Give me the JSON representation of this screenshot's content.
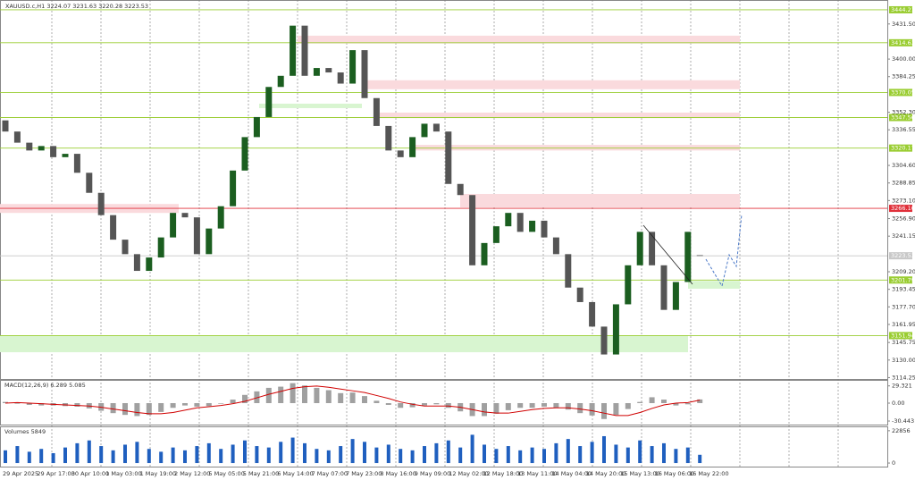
{
  "chart_data": {
    "type": "candlestick",
    "title": "XAUUSD.c,H1  3224.07 3231.63 3220.28 3223.53",
    "x_labels": [
      "29 Apr 2025",
      "29 Apr 17:00",
      "30 Apr 10:00",
      "1 May 03:00",
      "1 May 19:00",
      "2 May 12:00",
      "5 May 05:00",
      "5 May 21:00",
      "6 May 14:00",
      "7 May 07:00",
      "7 May 23:00",
      "8 May 16:00",
      "9 May 09:00",
      "12 May 02:00",
      "12 May 18:00",
      "13 May 11:00",
      "14 May 04:00",
      "14 May 20:00",
      "15 May 13:00",
      "16 May 06:00",
      "16 May 22:00"
    ],
    "open": [
      3345,
      3335,
      3325,
      3318,
      3322,
      3312,
      3315,
      3298,
      3280,
      3260,
      3238,
      3225,
      3210,
      3222,
      3240,
      3262,
      3258,
      3225,
      3248,
      3268,
      3300,
      3330,
      3348,
      3375,
      3385,
      3430,
      3385,
      3392,
      3388,
      3378,
      3408,
      3365,
      3340,
      3318,
      3312,
      3330,
      3342,
      3335,
      3288,
      3278,
      3215,
      3235,
      3250,
      3262,
      3245,
      3255,
      3240,
      3225,
      3195,
      3182,
      3160,
      3135,
      3180,
      3215,
      3245,
      3215,
      3175,
      3200,
      3224.07
    ],
    "close": [
      3335,
      3325,
      3318,
      3322,
      3312,
      3315,
      3298,
      3280,
      3260,
      3238,
      3225,
      3210,
      3222,
      3240,
      3262,
      3258,
      3225,
      3248,
      3268,
      3300,
      3330,
      3348,
      3375,
      3385,
      3430,
      3385,
      3392,
      3388,
      3378,
      3408,
      3365,
      3340,
      3318,
      3312,
      3330,
      3342,
      3335,
      3288,
      3278,
      3215,
      3235,
      3250,
      3262,
      3245,
      3255,
      3240,
      3225,
      3195,
      3182,
      3160,
      3135,
      3180,
      3215,
      3245,
      3215,
      3175,
      3200,
      3245,
      3223.53
    ],
    "up_color": "#1b5e20",
    "down_color": "#555555",
    "ylim": [
      3113,
      3453
    ],
    "yticks": [
      {
        "value": 3431.5,
        "label": "3431.50"
      },
      {
        "value": 3400,
        "label": "3400.00"
      },
      {
        "value": 3384.25,
        "label": "3384.25"
      },
      {
        "value": 3352.3,
        "label": "3352.30"
      },
      {
        "value": 3336.55,
        "label": "3336.55"
      },
      {
        "value": 3304.6,
        "label": "3304.60"
      },
      {
        "value": 3288.85,
        "label": "3288.85"
      },
      {
        "value": 3273.1,
        "label": "3273.10"
      },
      {
        "value": 3256.9,
        "label": "3256.90"
      },
      {
        "value": 3241.15,
        "label": "3241.15"
      },
      {
        "value": 3209.2,
        "label": "3209.20"
      },
      {
        "value": 3193.45,
        "label": "3193.45"
      },
      {
        "value": 3177.7,
        "label": "3177.70"
      },
      {
        "value": 3161.95,
        "label": "3161.95"
      },
      {
        "value": 3145.75,
        "label": "3145.75"
      },
      {
        "value": 3130,
        "label": "3130.00"
      },
      {
        "value": 3114.25,
        "label": "3114.25"
      }
    ],
    "levels": [
      {
        "value": 3444.21,
        "label": "3444.21",
        "color": "#9acd32"
      },
      {
        "value": 3414.63,
        "label": "3414.63",
        "color": "#9acd32"
      },
      {
        "value": 3370.05,
        "label": "3370.05",
        "color": "#9acd32"
      },
      {
        "value": 3347.56,
        "label": "3347.56",
        "color": "#9acd32"
      },
      {
        "value": 3320.17,
        "label": "3320.17",
        "color": "#9acd32"
      },
      {
        "value": 3266.1,
        "label": "3266.10",
        "color": "#e0303a"
      },
      {
        "value": 3223.53,
        "label": "3223.53",
        "color": "#c8c8c8"
      },
      {
        "value": 3201.79,
        "label": "3201.79",
        "color": "#9acd32"
      },
      {
        "value": 3151.94,
        "label": "3151.94",
        "color": "#9acd32"
      }
    ],
    "zones": [
      {
        "low": 3414,
        "high": 3421,
        "color": "#fadadd"
      },
      {
        "low": 3373,
        "high": 3381,
        "color": "#fadadd"
      },
      {
        "low": 3347,
        "high": 3352,
        "color": "#fadadd"
      },
      {
        "low": 3318,
        "high": 3323,
        "color": "#fadadd"
      },
      {
        "low": 3267,
        "high": 3279,
        "color": "#fadadd"
      },
      {
        "low": 3262,
        "high": 3270,
        "color": "#fadadd"
      },
      {
        "low": 3356,
        "high": 3360,
        "color": "#d8f5d0"
      },
      {
        "low": 3194,
        "high": 3201,
        "color": "#d8f5d0"
      },
      {
        "low": 3137,
        "high": 3152,
        "color": "#d8f5d0"
      }
    ],
    "macd": {
      "title": "MACD(12,26,9) 6.289 5.085",
      "histogram": [
        2,
        -1,
        -3,
        -4,
        -4,
        -5,
        -6,
        -9,
        -13,
        -17,
        -20,
        -22,
        -20,
        -15,
        -8,
        -4,
        -6,
        -5,
        -1,
        6,
        14,
        20,
        26,
        28,
        34,
        30,
        26,
        22,
        17,
        18,
        12,
        4,
        -3,
        -8,
        -7,
        -4,
        -2,
        -8,
        -14,
        -22,
        -22,
        -18,
        -12,
        -8,
        -8,
        -6,
        -8,
        -11,
        -17,
        -21,
        -27,
        -20,
        -10,
        2,
        10,
        6,
        -4,
        -2,
        6.289
      ],
      "signal": [
        0,
        1,
        0,
        -1,
        -2,
        -3,
        -4,
        -5,
        -7,
        -10,
        -13,
        -16,
        -18,
        -18,
        -16,
        -12,
        -8,
        -6,
        -4,
        -1,
        3,
        9,
        15,
        20,
        25,
        28,
        29,
        27,
        24,
        21,
        18,
        13,
        8,
        2,
        -2,
        -5,
        -5,
        -5,
        -7,
        -11,
        -15,
        -17,
        -17,
        -14,
        -11,
        -9,
        -8,
        -8,
        -10,
        -13,
        -17,
        -21,
        -21,
        -16,
        -9,
        -3,
        0,
        1,
        5.085
      ],
      "histogram_color": "#a0a0a0",
      "signal_color": "#d00000",
      "ylim": [
        -38,
        38
      ],
      "yticks": [
        29.321,
        {
          "value": 0,
          "label": "0.00"
        },
        -30.443
      ]
    },
    "volume": {
      "title": "Volumes 5849",
      "values": [
        9000,
        12000,
        8000,
        10000,
        7000,
        11000,
        14000,
        16000,
        12000,
        9000,
        13000,
        15000,
        10000,
        8000,
        11000,
        9000,
        12000,
        14000,
        10000,
        13000,
        16000,
        12000,
        11000,
        15000,
        18000,
        14000,
        10000,
        9000,
        12000,
        17000,
        15000,
        11000,
        13000,
        10000,
        9000,
        12000,
        14000,
        16000,
        11000,
        20000,
        13000,
        10000,
        12000,
        9000,
        11000,
        10000,
        14000,
        17000,
        12000,
        15000,
        19000,
        13000,
        11000,
        16000,
        12000,
        14000,
        10000,
        11000,
        5849
      ],
      "color": "#1f5fbf",
      "ylim": [
        -2500,
        25300
      ],
      "yticks": [
        22856,
        0
      ]
    }
  }
}
